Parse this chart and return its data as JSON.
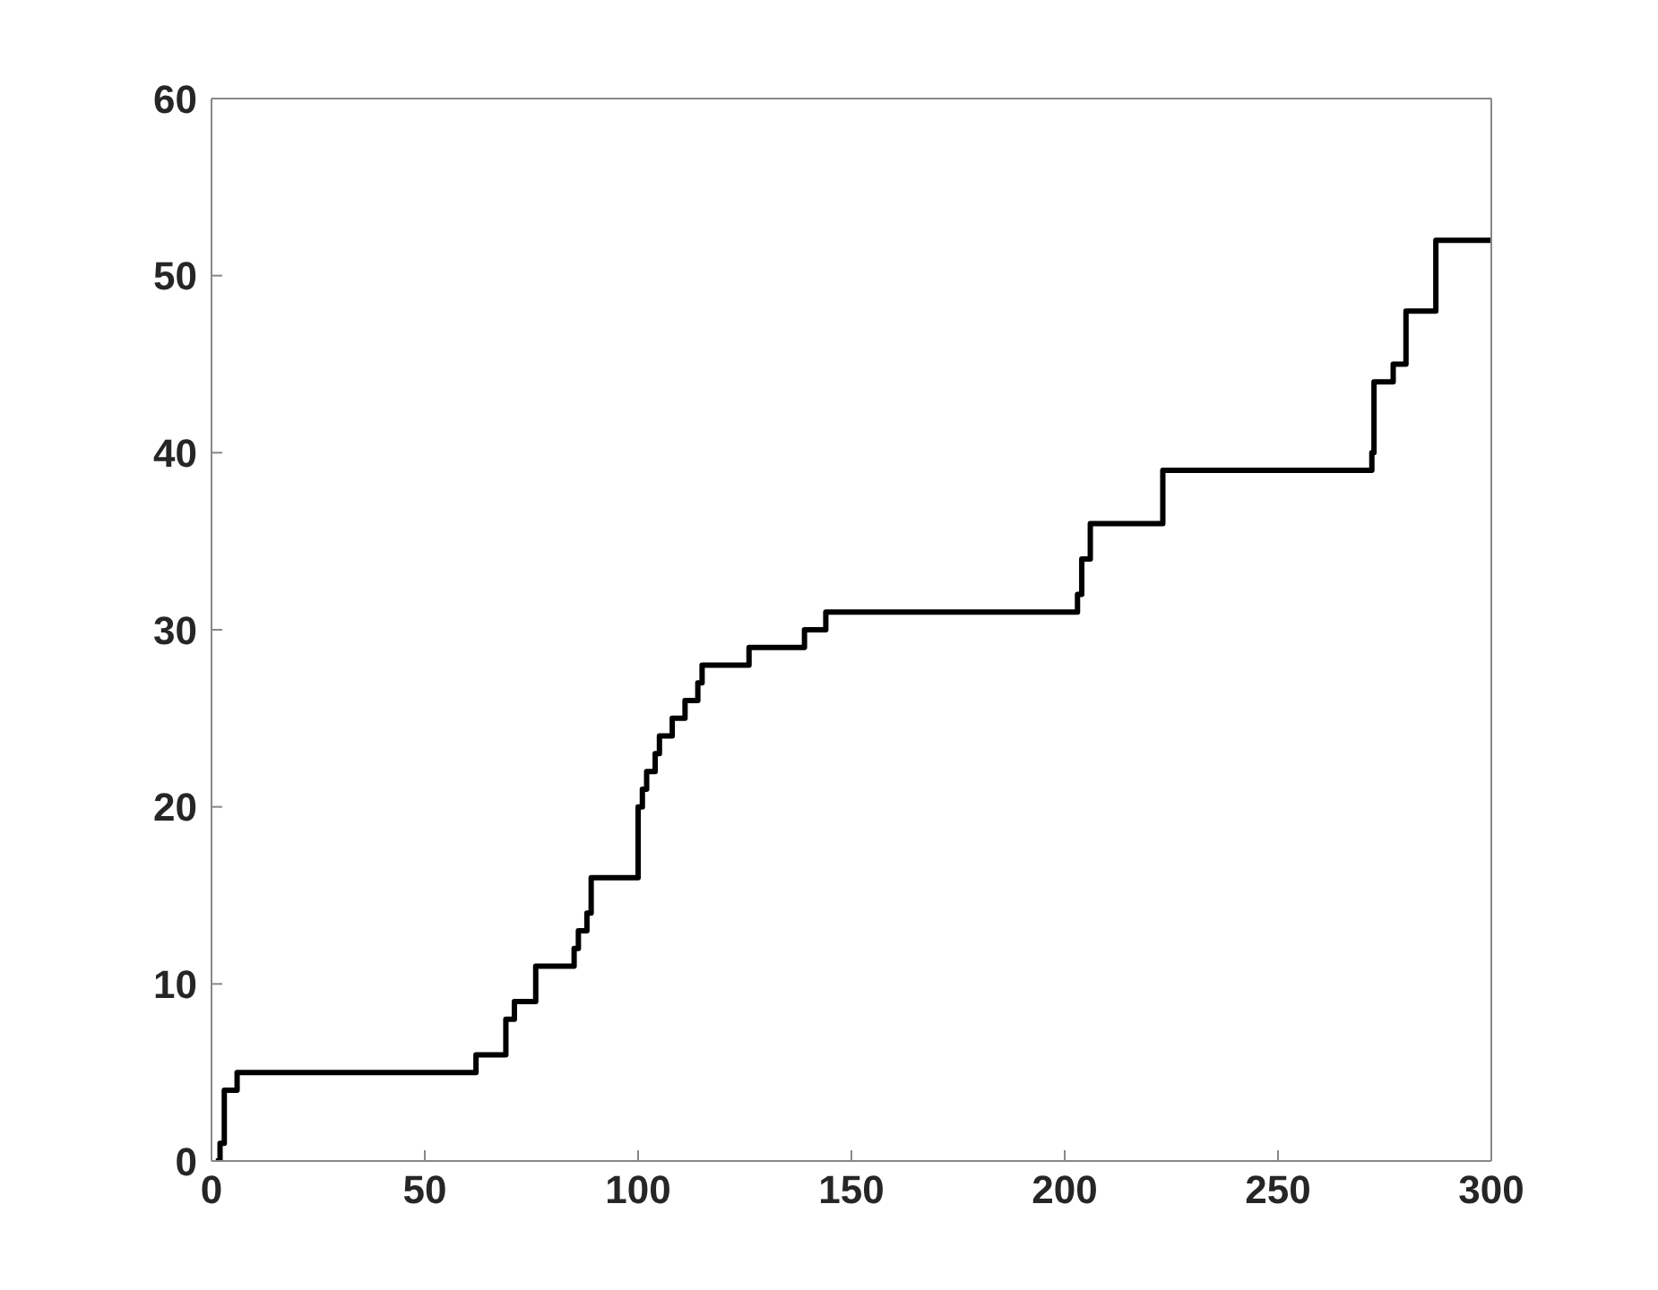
{
  "chart_data": {
    "type": "step",
    "color": "#000000",
    "x": [
      1,
      2,
      3,
      6,
      62,
      69,
      71,
      76,
      85,
      86,
      88,
      89,
      100,
      101,
      102,
      104,
      105,
      108,
      111,
      114,
      115,
      126,
      139,
      144,
      203,
      204,
      206,
      223,
      272,
      272.5,
      277,
      280,
      287,
      300
    ],
    "values": [
      0,
      1,
      4,
      5,
      6,
      8,
      9,
      11,
      12,
      13,
      14,
      16,
      20,
      21,
      22,
      23,
      24,
      25,
      26,
      27,
      28,
      29,
      30,
      31,
      32,
      34,
      36,
      39,
      40,
      44,
      45,
      48,
      52,
      52
    ],
    "xlim": [
      0,
      300
    ],
    "xticks": [
      0,
      50,
      100,
      150,
      200,
      250,
      300
    ],
    "ylim": [
      0,
      60
    ],
    "yticks": [
      0,
      10,
      20,
      30,
      40,
      50,
      60
    ],
    "grid": false
  }
}
